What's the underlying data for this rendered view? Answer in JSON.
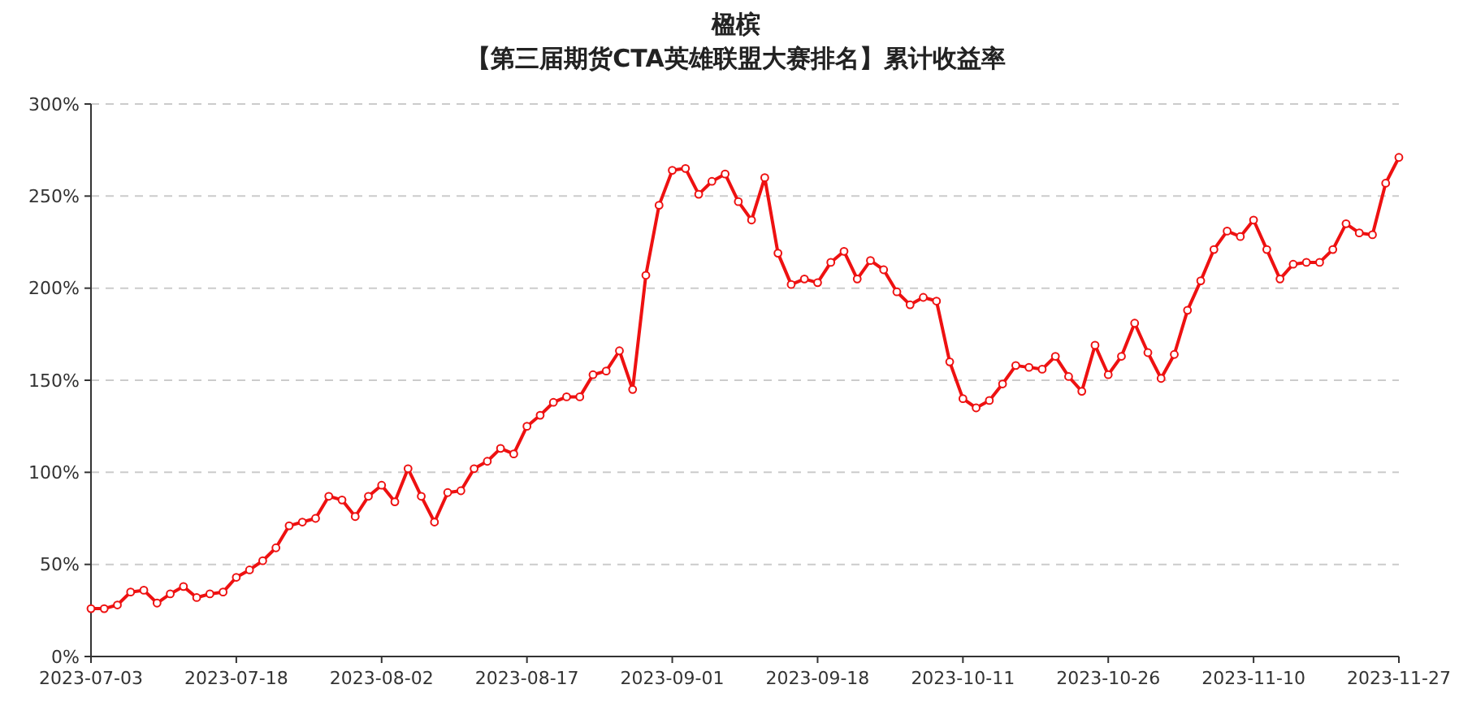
{
  "chart_data": {
    "type": "line",
    "title": "楹槟",
    "subtitle": "【第三届期货CTA英雄联盟大赛排名】累计收益率",
    "categories": [
      "2023-07-03",
      null,
      null,
      null,
      null,
      null,
      null,
      null,
      null,
      null,
      null,
      "2023-07-18",
      null,
      null,
      null,
      null,
      null,
      null,
      null,
      null,
      null,
      null,
      "2023-08-02",
      null,
      null,
      null,
      null,
      null,
      null,
      null,
      null,
      null,
      null,
      "2023-08-17",
      null,
      null,
      null,
      null,
      null,
      null,
      null,
      null,
      null,
      null,
      "2023-09-01",
      null,
      null,
      null,
      null,
      null,
      null,
      null,
      null,
      null,
      null,
      "2023-09-18",
      null,
      null,
      null,
      null,
      null,
      null,
      null,
      null,
      null,
      null,
      "2023-10-11",
      null,
      null,
      null,
      null,
      null,
      null,
      null,
      null,
      null,
      null,
      "2023-10-26",
      null,
      null,
      null,
      null,
      null,
      null,
      null,
      null,
      null,
      null,
      "2023-11-10",
      null,
      null,
      null,
      null,
      null,
      null,
      null,
      null,
      null,
      null,
      "2023-11-27"
    ],
    "series": [
      {
        "color": "#ee1111",
        "values": [
          26,
          26,
          28,
          35,
          36,
          29,
          34,
          38,
          32,
          34,
          35,
          43,
          47,
          52,
          59,
          71,
          73,
          75,
          87,
          85,
          76,
          87,
          93,
          84,
          102,
          87,
          73,
          89,
          90,
          102,
          106,
          113,
          110,
          125,
          131,
          138,
          141,
          141,
          153,
          155,
          166,
          145,
          207,
          245,
          264,
          265,
          251,
          258,
          262,
          247,
          237,
          260,
          219,
          202,
          205,
          203,
          214,
          220,
          205,
          215,
          210,
          198,
          191,
          195,
          193,
          160,
          140,
          135,
          139,
          148,
          158,
          157,
          156,
          163,
          152,
          144,
          169,
          153,
          163,
          181,
          165,
          151,
          164,
          188,
          204,
          221,
          231,
          228,
          237,
          221,
          205,
          213,
          214,
          214,
          221,
          235,
          230,
          229,
          257,
          271
        ]
      }
    ],
    "ylim": [
      0,
      300
    ],
    "yticks": [
      {
        "value": 0,
        "label": "0%"
      },
      {
        "value": 50,
        "label": "50%"
      },
      {
        "value": 100,
        "label": "100%"
      },
      {
        "value": 150,
        "label": "150%"
      },
      {
        "value": 200,
        "label": "200%"
      },
      {
        "value": 250,
        "label": "250%"
      },
      {
        "value": 300,
        "label": "300%"
      }
    ],
    "grid": "y",
    "marker": "circle",
    "line_style": "solid"
  }
}
